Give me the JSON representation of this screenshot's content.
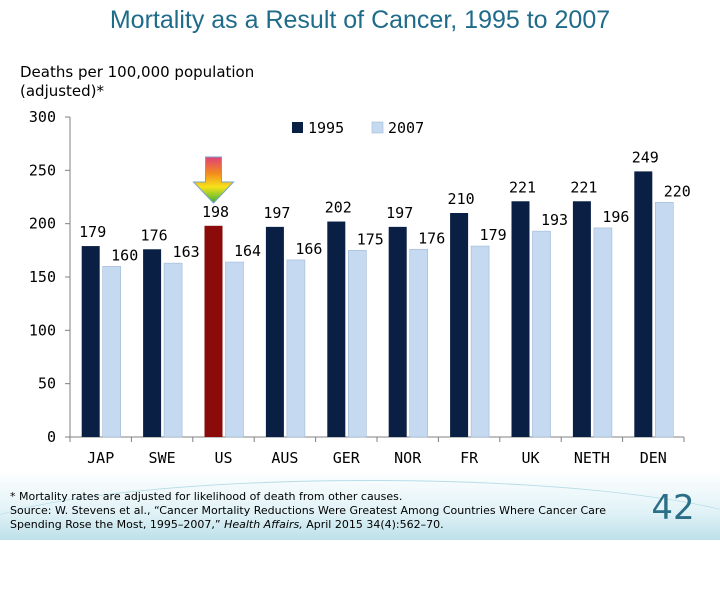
{
  "title": "Mortality as a Result of Cancer, 1995 to 2007",
  "footnote": {
    "line1": "* Mortality rates are adjusted for likelihood of death from other causes.",
    "line2": "Source: W. Stevens et al., “Cancer Mortality Reductions Were Greatest Among Countries Where Cancer Care",
    "line3_pre": "Spending Rose the Most, 1995–2007,” ",
    "line3_journal": "Health Affairs,",
    "line3_post": " April 2015 34(4):562–70."
  },
  "slide_number": "42",
  "colors": {
    "series_1995": "#0a1f44",
    "series_2007": "#c5d9f1",
    "highlight_us_1995": "#8b0a0a",
    "axis": "#808080",
    "title": "#1f6b8a"
  },
  "chart_data": {
    "type": "bar",
    "title": "Mortality as a Result of Cancer, 1995 to 2007",
    "ylabel": "Deaths per 100,000 population (adjusted)*",
    "xlabel": "",
    "ylim": [
      0,
      300
    ],
    "yticks": [
      0,
      50,
      100,
      150,
      200,
      250,
      300
    ],
    "grid": false,
    "legend_position": "top-right",
    "categories": [
      "JAP",
      "SWE",
      "US",
      "AUS",
      "GER",
      "NOR",
      "FR",
      "UK",
      "NETH",
      "DEN"
    ],
    "series": [
      {
        "name": "1995",
        "values": [
          179,
          176,
          198,
          197,
          202,
          197,
          210,
          221,
          221,
          249
        ]
      },
      {
        "name": "2007",
        "values": [
          160,
          163,
          164,
          166,
          175,
          176,
          179,
          193,
          196,
          220
        ]
      }
    ],
    "annotations": [
      {
        "type": "arrow",
        "icon": "down-arrow-icon",
        "category": "US"
      }
    ]
  }
}
